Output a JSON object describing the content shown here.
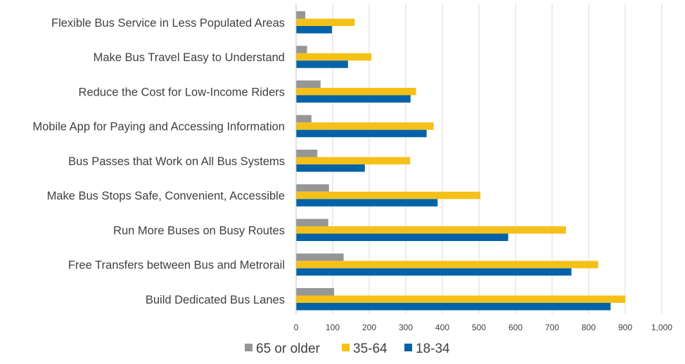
{
  "chart_data": {
    "type": "bar",
    "orientation": "horizontal",
    "categories": [
      "Flexible Bus Service in Less Populated Areas",
      "Make Bus Travel Easy to Understand",
      "Reduce the Cost for Low-Income Riders",
      "Mobile App for Paying and Accessing Information",
      "Bus Passes that Work on All Bus Systems",
      "Make Bus Stops Safe, Convenient, Accessible",
      "Run More Buses on Busy Routes",
      "Free Transfers between Bus and Metrorail",
      "Build Dedicated Bus Lanes"
    ],
    "series": [
      {
        "name": "65 or older",
        "color": "#969696",
        "values": [
          25,
          30,
          67,
          42,
          58,
          90,
          88,
          130,
          104
        ]
      },
      {
        "name": "35-64",
        "color": "#f5c118",
        "values": [
          160,
          206,
          328,
          376,
          312,
          504,
          738,
          826,
          900
        ]
      },
      {
        "name": "18-34",
        "color": "#0463a8",
        "values": [
          98,
          142,
          313,
          357,
          188,
          387,
          580,
          753,
          860
        ]
      }
    ],
    "xlim": [
      0,
      1000
    ],
    "xticks": [
      "0",
      "100",
      "200",
      "300",
      "400",
      "500",
      "600",
      "700",
      "800",
      "900",
      "1,000"
    ],
    "grid": true,
    "legend_position": "bottom"
  }
}
